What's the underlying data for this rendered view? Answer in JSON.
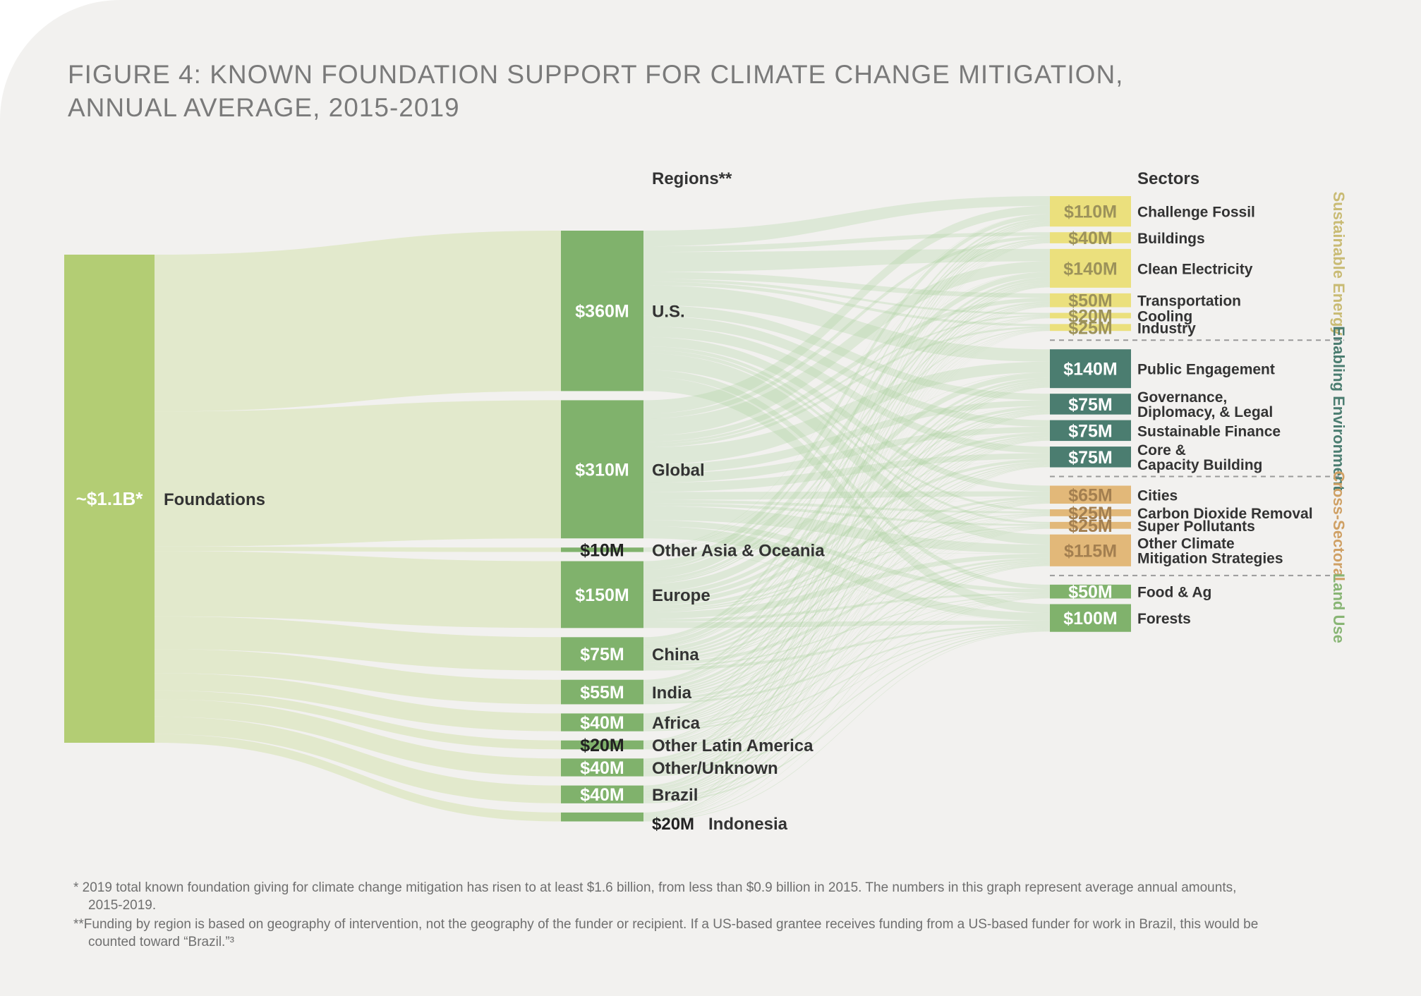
{
  "title_lines": [
    "FIGURE 4: KNOWN FOUNDATION SUPPORT FOR CLIMATE CHANGE MITIGATION,",
    "ANNUAL AVERAGE, 2015-2019"
  ],
  "headers": {
    "regions": "Regions**",
    "sectors": "Sectors"
  },
  "source": {
    "name": "Foundations",
    "value": "~$1.1B*"
  },
  "chart_data": {
    "type": "sankey",
    "title": "FIGURE 4: KNOWN FOUNDATION SUPPORT FOR CLIMATE CHANGE MITIGATION, ANNUAL AVERAGE, 2015-2019",
    "units": "USD millions per year",
    "source_total_label": "~$1.1B*",
    "regions": [
      {
        "name": "U.S.",
        "label": "$360M",
        "value": 360
      },
      {
        "name": "Global",
        "label": "$310M",
        "value": 310
      },
      {
        "name": "Other Asia & Oceania",
        "label": "$10M",
        "value": 10
      },
      {
        "name": "Europe",
        "label": "$150M",
        "value": 150
      },
      {
        "name": "China",
        "label": "$75M",
        "value": 75
      },
      {
        "name": "India",
        "label": "$55M",
        "value": 55
      },
      {
        "name": "Africa",
        "label": "$40M",
        "value": 40
      },
      {
        "name": "Other Latin America",
        "label": "$20M",
        "value": 20
      },
      {
        "name": "Other/Unknown",
        "label": "$40M",
        "value": 40
      },
      {
        "name": "Brazil",
        "label": "$40M",
        "value": 40
      },
      {
        "name": "Indonesia",
        "label": "$20M",
        "value": 20
      }
    ],
    "sectors": [
      {
        "name": "Challenge Fossil",
        "label": "$110M",
        "value": 110,
        "group": 0
      },
      {
        "name": "Buildings",
        "label": "$40M",
        "value": 40,
        "group": 0
      },
      {
        "name": "Clean Electricity",
        "label": "$140M",
        "value": 140,
        "group": 0
      },
      {
        "name": "Transportation",
        "label": "$50M",
        "value": 50,
        "group": 0
      },
      {
        "name": "Cooling",
        "label": "$20M",
        "value": 20,
        "group": 0
      },
      {
        "name": "Industry",
        "label": "$25M",
        "value": 25,
        "group": 0
      },
      {
        "name": "Public Engagement",
        "label": "$140M",
        "value": 140,
        "group": 1
      },
      {
        "name": "Governance, Diplomacy, & Legal",
        "label": "$75M",
        "value": 75,
        "group": 1,
        "lines": [
          "Governance,",
          "Diplomacy, & Legal"
        ]
      },
      {
        "name": "Sustainable Finance",
        "label": "$75M",
        "value": 75,
        "group": 1
      },
      {
        "name": "Core & Capacity Building",
        "label": "$75M",
        "value": 75,
        "group": 1,
        "lines": [
          "Core &",
          "Capacity Building"
        ]
      },
      {
        "name": "Cities",
        "label": "$65M",
        "value": 65,
        "group": 2
      },
      {
        "name": "Carbon Dioxide Removal",
        "label": "$25M",
        "value": 25,
        "group": 2
      },
      {
        "name": "Super Pollutants",
        "label": "$25M",
        "value": 25,
        "group": 2
      },
      {
        "name": "Other Climate Mitigation Strategies",
        "label": "$115M",
        "value": 115,
        "group": 2,
        "lines": [
          "Other Climate",
          "Mitigation Strategies"
        ]
      },
      {
        "name": "Food & Ag",
        "label": "$50M",
        "value": 50,
        "group": 3
      },
      {
        "name": "Forests",
        "label": "$100M",
        "value": 100,
        "group": 3
      }
    ],
    "groups": [
      {
        "name": "Sustainable Energy",
        "color": "#c9bb74"
      },
      {
        "name": "Enabling Environment",
        "color": "#4b7d70"
      },
      {
        "name": "Cross-Sectoral",
        "color": "#cfa064"
      },
      {
        "name": "Land Use",
        "color": "#88b574"
      }
    ]
  },
  "colors": {
    "source_bar": "#b3cd74",
    "source_flow": "#dfe8c6",
    "region_bar": "#80b26c",
    "link": "#a9d29b",
    "group_fills": [
      "#ebe07d",
      "#4b7d70",
      "#e2b879",
      "#80b26c"
    ],
    "group_text": [
      "#9c925a",
      "#ffffff",
      "#a37f50",
      "#ffffff"
    ],
    "divider": "#9a9a9a"
  },
  "footnotes": [
    "* 2019 total known foundation giving for climate change mitigation has risen to at least $1.6 billion, from less than $0.9 billion in 2015. The numbers in this graph represent average annual amounts, 2015-2019.",
    "**Funding by region is based on geography of intervention, not the geography of the funder or recipient. If a US-based grantee receives funding from a US-based funder for work in Brazil, this would be counted toward “Brazil.”³"
  ]
}
